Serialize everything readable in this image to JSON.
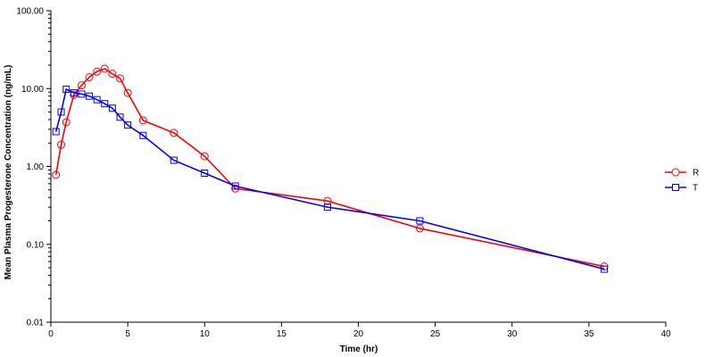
{
  "chart_data": {
    "type": "line",
    "title": "",
    "xlabel": "Time (hr)",
    "ylabel": "Mean Plasma Progesterone Concentration (ng/mL)",
    "xlim": [
      0,
      40
    ],
    "ylim": [
      0.01,
      100
    ],
    "yscale": "log",
    "grid": false,
    "legend_position": "right",
    "x_ticks": [
      0,
      5,
      10,
      15,
      20,
      25,
      30,
      35,
      40
    ],
    "x_tick_labels": [
      "0",
      "5",
      "10",
      "15",
      "20",
      "25",
      "30",
      "35",
      "40"
    ],
    "y_ticks": [
      0.01,
      0.1,
      1,
      10,
      100
    ],
    "y_tick_labels": [
      "0.01",
      "0.10",
      "1.00",
      "10.00",
      "100.00"
    ],
    "series": [
      {
        "name": "R",
        "color": "#ff0000",
        "marker": "circle",
        "x": [
          0.33,
          0.67,
          1,
          1.5,
          2,
          2.5,
          3,
          3.5,
          4,
          4.5,
          5,
          6,
          8,
          10,
          12,
          18,
          24,
          36
        ],
        "y": [
          0.78,
          1.9,
          3.7,
          8.3,
          11.0,
          14.0,
          16.5,
          18.0,
          15.5,
          13.5,
          8.8,
          3.9,
          2.7,
          1.35,
          0.52,
          0.36,
          0.16,
          0.052
        ]
      },
      {
        "name": "T",
        "color": "#0000ff",
        "marker": "square",
        "x": [
          0.33,
          0.67,
          1,
          1.5,
          2,
          2.5,
          3,
          3.5,
          4,
          4.5,
          5,
          6,
          8,
          10,
          12,
          18,
          24,
          36
        ],
        "y": [
          2.8,
          5.0,
          9.8,
          8.8,
          8.5,
          8.0,
          7.2,
          6.4,
          5.6,
          4.3,
          3.4,
          2.5,
          1.2,
          0.82,
          0.56,
          0.3,
          0.2,
          0.048
        ]
      }
    ]
  }
}
